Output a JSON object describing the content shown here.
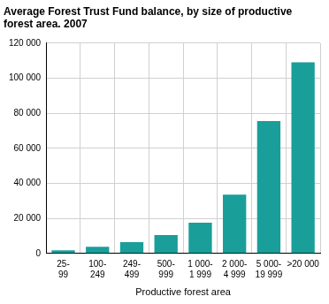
{
  "chart_data": {
    "type": "bar",
    "title": "Average Forest Trust Fund balance, by size of productive forest area. 2007",
    "x_label": "Productive forest area",
    "categories": [
      "25-99",
      "100-249",
      "249-499",
      "500-999",
      "1 000-1 999",
      "2 000-4 999",
      "5 000-19 999",
      ">20 000"
    ],
    "values": [
      1800,
      3800,
      6500,
      10500,
      17500,
      33500,
      75500,
      109000
    ],
    "color": "#1a9e9a",
    "ylim": [
      0,
      120000
    ],
    "yticks": [
      0,
      {
        "value": 20000,
        "label": "20 000"
      },
      {
        "value": 40000,
        "label": "40 000"
      },
      {
        "value": 60000,
        "label": "60 000"
      },
      {
        "value": 80000,
        "label": "80 000"
      },
      {
        "value": 100000,
        "label": "100 000"
      },
      {
        "value": 120000,
        "label": "120 000"
      }
    ],
    "grid": true
  }
}
